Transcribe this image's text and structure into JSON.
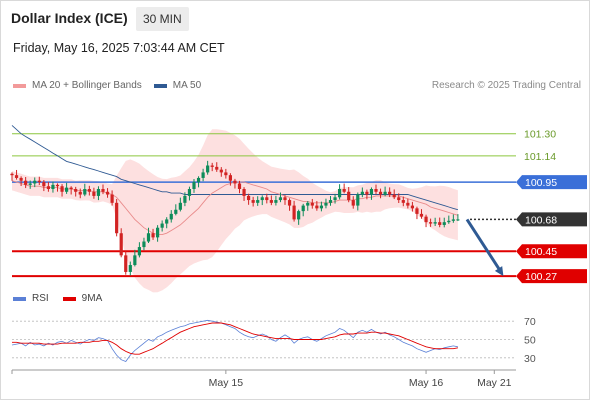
{
  "header": {
    "title": "Dollar Index (ICE)",
    "timeframe": "30 MIN",
    "timestamp": "Friday, May 16, 2025 7:03:44 AM CET"
  },
  "legend": {
    "items": [
      {
        "label": "MA 20 + Bollinger Bands",
        "color": "#f29a9a"
      },
      {
        "label": "MA 50",
        "color": "#2f5a93"
      }
    ],
    "credit": "Research © 2025 Trading Central"
  },
  "rsi_legend": {
    "items": [
      {
        "label": "RSI",
        "color": "#5b80d6"
      },
      {
        "label": "9MA",
        "color": "#e00000"
      }
    ]
  },
  "chart_data": {
    "type": "candlestick",
    "price_range": [
      100.22,
      101.58
    ],
    "x_ticks": [
      {
        "label": "May 15",
        "index": 47
      },
      {
        "label": "May 16",
        "index": 91
      },
      {
        "label": "May 21",
        "index": 106
      }
    ],
    "levels": [
      {
        "value": 101.3,
        "label": "101.30",
        "kind": "resistance-minor",
        "color": "#8cc63f"
      },
      {
        "value": 101.14,
        "label": "101.14",
        "kind": "resistance-minor",
        "color": "#8cc63f"
      },
      {
        "value": 100.95,
        "label": "100.95",
        "kind": "pivot",
        "color": "#3a6fd8"
      },
      {
        "value": 100.68,
        "label": "100.68",
        "kind": "last-price",
        "color": "#333333"
      },
      {
        "value": 100.45,
        "label": "100.45",
        "kind": "target",
        "color": "#e00000"
      },
      {
        "value": 100.27,
        "label": "100.27",
        "kind": "target",
        "color": "#e00000"
      }
    ],
    "arrow": {
      "from_index": 100,
      "from_value": 100.68,
      "to_index": 108,
      "to_value": 100.27
    },
    "closes": [
      101.0,
      100.98,
      100.96,
      100.93,
      100.94,
      100.96,
      100.95,
      100.92,
      100.9,
      100.93,
      100.92,
      100.88,
      100.91,
      100.9,
      100.88,
      100.86,
      100.9,
      100.88,
      100.85,
      100.9,
      100.88,
      100.86,
      100.8,
      100.58,
      100.42,
      100.3,
      100.35,
      100.42,
      100.48,
      100.52,
      100.58,
      100.55,
      100.62,
      100.65,
      100.68,
      100.72,
      100.75,
      100.8,
      100.85,
      100.9,
      100.95,
      100.98,
      101.02,
      101.07,
      101.06,
      101.04,
      101.02,
      101.0,
      100.96,
      100.94,
      100.9,
      100.85,
      100.82,
      100.8,
      100.82,
      100.84,
      100.82,
      100.8,
      100.82,
      100.84,
      100.82,
      100.78,
      100.68,
      100.74,
      100.78,
      100.8,
      100.78,
      100.76,
      100.78,
      100.8,
      100.82,
      100.84,
      100.9,
      100.88,
      100.82,
      100.78,
      100.86,
      100.88,
      100.86,
      100.9,
      100.88,
      100.86,
      100.88,
      100.86,
      100.84,
      100.82,
      100.8,
      100.78,
      100.76,
      100.72,
      100.7,
      100.66,
      100.65,
      100.66,
      100.64,
      100.66,
      100.67,
      100.68,
      100.68
    ],
    "ma20": [
      100.96,
      100.95,
      100.94,
      100.93,
      100.92,
      100.92,
      100.92,
      100.91,
      100.91,
      100.91,
      100.91,
      100.9,
      100.9,
      100.9,
      100.89,
      100.89,
      100.89,
      100.89,
      100.88,
      100.88,
      100.88,
      100.87,
      100.86,
      100.84,
      100.8,
      100.76,
      100.72,
      100.68,
      100.65,
      100.62,
      100.6,
      100.58,
      100.57,
      100.57,
      100.58,
      100.6,
      100.62,
      100.64,
      100.67,
      100.7,
      100.73,
      100.76,
      100.8,
      100.84,
      100.87,
      100.89,
      100.91,
      100.93,
      100.94,
      100.95,
      100.95,
      100.95,
      100.94,
      100.93,
      100.92,
      100.91,
      100.9,
      100.88,
      100.87,
      100.86,
      100.85,
      100.84,
      100.83,
      100.82,
      100.81,
      100.81,
      100.8,
      100.8,
      100.8,
      100.8,
      100.8,
      100.81,
      100.82,
      100.82,
      100.82,
      100.82,
      100.83,
      100.83,
      100.84,
      100.84,
      100.85,
      100.85,
      100.85,
      100.85,
      100.85,
      100.85,
      100.84,
      100.83,
      100.82,
      100.81,
      100.8,
      100.79,
      100.77,
      100.76,
      100.75,
      100.74,
      100.73,
      100.72,
      100.71
    ],
    "ma50": [
      101.36,
      101.33,
      101.3,
      101.28,
      101.26,
      101.24,
      101.22,
      101.2,
      101.18,
      101.16,
      101.14,
      101.12,
      101.1,
      101.09,
      101.08,
      101.07,
      101.06,
      101.05,
      101.04,
      101.03,
      101.02,
      101.01,
      101.0,
      100.99,
      100.97,
      100.96,
      100.95,
      100.94,
      100.93,
      100.92,
      100.91,
      100.9,
      100.89,
      100.88,
      100.88,
      100.87,
      100.87,
      100.87,
      100.86,
      100.86,
      100.86,
      100.86,
      100.86,
      100.86,
      100.86,
      100.86,
      100.86,
      100.86,
      100.86,
      100.86,
      100.86,
      100.86,
      100.86,
      100.86,
      100.86,
      100.86,
      100.86,
      100.86,
      100.86,
      100.86,
      100.86,
      100.86,
      100.86,
      100.86,
      100.86,
      100.86,
      100.86,
      100.86,
      100.86,
      100.86,
      100.86,
      100.86,
      100.86,
      100.86,
      100.86,
      100.86,
      100.86,
      100.86,
      100.86,
      100.86,
      100.86,
      100.86,
      100.86,
      100.86,
      100.86,
      100.86,
      100.86,
      100.86,
      100.85,
      100.84,
      100.83,
      100.82,
      100.81,
      100.8,
      100.79,
      100.78,
      100.77,
      100.76,
      100.75
    ],
    "rsi_pane": {
      "range": [
        20,
        80
      ],
      "ticks": [
        70,
        50,
        30
      ],
      "rsi": [
        44,
        45,
        46,
        43,
        47,
        44,
        45,
        43,
        46,
        44,
        47,
        48,
        46,
        49,
        47,
        45,
        48,
        50,
        49,
        52,
        51,
        49,
        40,
        33,
        28,
        26,
        33,
        38,
        42,
        46,
        50,
        48,
        53,
        55,
        58,
        60,
        62,
        64,
        65,
        67,
        68,
        69,
        70,
        71,
        70,
        69,
        68,
        66,
        64,
        62,
        58,
        55,
        53,
        52,
        54,
        56,
        54,
        50,
        48,
        52,
        55,
        52,
        46,
        50,
        52,
        53,
        50,
        48,
        51,
        54,
        56,
        58,
        62,
        60,
        56,
        52,
        58,
        60,
        58,
        61,
        58,
        56,
        58,
        55,
        53,
        50,
        47,
        45,
        43,
        40,
        38,
        36,
        38,
        40,
        39,
        41,
        42,
        43,
        42
      ],
      "ma9": [
        47,
        47,
        46,
        46,
        46,
        46,
        46,
        45,
        45,
        45,
        45,
        46,
        46,
        46,
        46,
        47,
        47,
        47,
        48,
        48,
        49,
        49,
        47,
        44,
        40,
        37,
        35,
        34,
        34,
        36,
        38,
        40,
        43,
        46,
        49,
        52,
        55,
        58,
        60,
        62,
        64,
        65,
        66,
        67,
        68,
        68,
        68,
        67,
        66,
        64,
        62,
        60,
        58,
        56,
        55,
        54,
        53,
        52,
        51,
        51,
        51,
        51,
        50,
        50,
        50,
        50,
        50,
        50,
        50,
        51,
        52,
        53,
        55,
        56,
        56,
        56,
        57,
        57,
        57,
        58,
        58,
        57,
        57,
        56,
        55,
        54,
        52,
        50,
        48,
        46,
        44,
        42,
        41,
        40,
        40,
        40,
        40,
        40,
        41
      ]
    }
  }
}
